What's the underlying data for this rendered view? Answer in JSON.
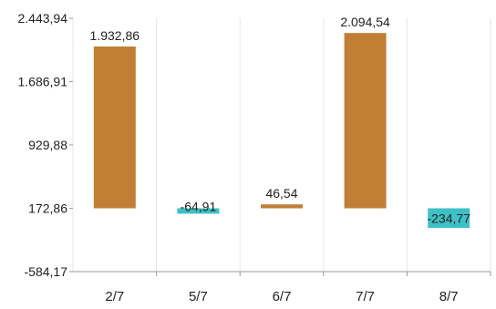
{
  "chart_data": {
    "type": "bar",
    "categories": [
      "2/7",
      "5/7",
      "6/7",
      "7/7",
      "8/7"
    ],
    "values": [
      1932.86,
      -64.91,
      46.54,
      2094.54,
      -234.77
    ],
    "labels": [
      "1.932,86",
      "-64,91",
      "46,54",
      "2.094,54",
      "-234,77"
    ],
    "y_ticks": [
      2443.94,
      1686.91,
      929.88,
      172.86,
      -584.17
    ],
    "y_tick_labels": [
      "2.443,94",
      "1.686,91",
      "929,88",
      "172,86",
      "-584,17"
    ],
    "ylim": [
      -584.17,
      2443.94
    ],
    "baseline": 172.86,
    "grid": true,
    "colors": {
      "positive": "#C07F35",
      "negative": "#3EC1C6"
    }
  }
}
